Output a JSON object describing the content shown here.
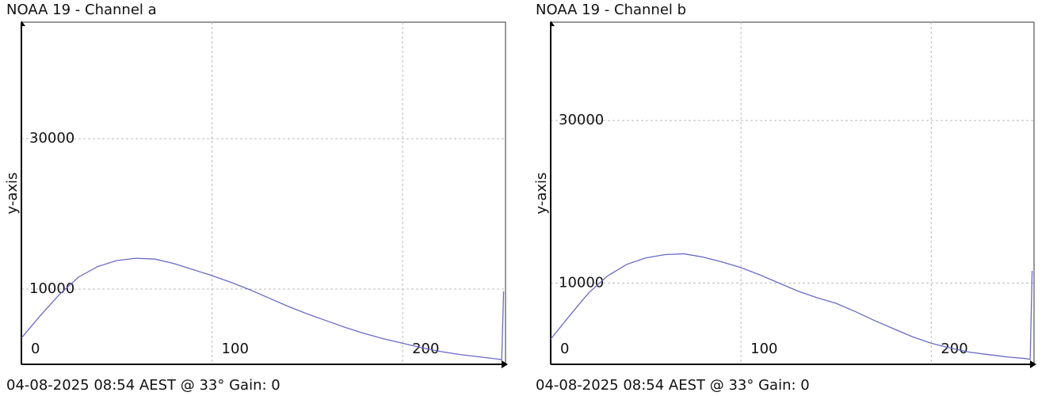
{
  "chart_data": [
    {
      "type": "line",
      "title": "NOAA 19 - Channel a",
      "ylabel": "y-axis",
      "footer": "04-08-2025 08:54 AEST @ 33° Gain: 0",
      "color": "#6a6ac6",
      "grid": true,
      "x": [
        0,
        10,
        20,
        30,
        40,
        50,
        60,
        70,
        80,
        90,
        100,
        110,
        120,
        130,
        140,
        150,
        160,
        170,
        180,
        190,
        200,
        210,
        220,
        230,
        240,
        250,
        252,
        253
      ],
      "values": [
        3500,
        6500,
        9300,
        11600,
        13000,
        13800,
        14100,
        14000,
        13400,
        12600,
        11800,
        10900,
        9900,
        8800,
        7700,
        6700,
        5800,
        4900,
        4100,
        3400,
        2800,
        2200,
        1700,
        1300,
        1000,
        700,
        600,
        9700
      ],
      "xlim": [
        0,
        254
      ],
      "xticks": [
        0,
        100,
        200
      ],
      "ylim": [
        0,
        45500
      ],
      "yticks": [
        10000,
        30000
      ]
    },
    {
      "type": "line",
      "title": "NOAA 19 - Channel b",
      "ylabel": "y-axis",
      "footer": "04-08-2025 08:54 AEST @ 33° Gain: 0",
      "color": "#6a6ac6",
      "grid": true,
      "x": [
        0,
        10,
        20,
        30,
        40,
        50,
        60,
        70,
        80,
        90,
        100,
        110,
        120,
        130,
        140,
        150,
        160,
        170,
        180,
        190,
        200,
        210,
        220,
        230,
        240,
        250,
        252,
        253
      ],
      "values": [
        3100,
        6000,
        8800,
        10900,
        12300,
        13100,
        13500,
        13600,
        13200,
        12600,
        11900,
        11000,
        10000,
        9000,
        8200,
        7500,
        6500,
        5400,
        4400,
        3400,
        2600,
        2000,
        1500,
        1200,
        900,
        700,
        600,
        11500
      ],
      "xlim": [
        0,
        254
      ],
      "xticks": [
        0,
        100,
        200
      ],
      "ylim": [
        0,
        42100
      ],
      "yticks": [
        10000,
        30000
      ]
    }
  ]
}
